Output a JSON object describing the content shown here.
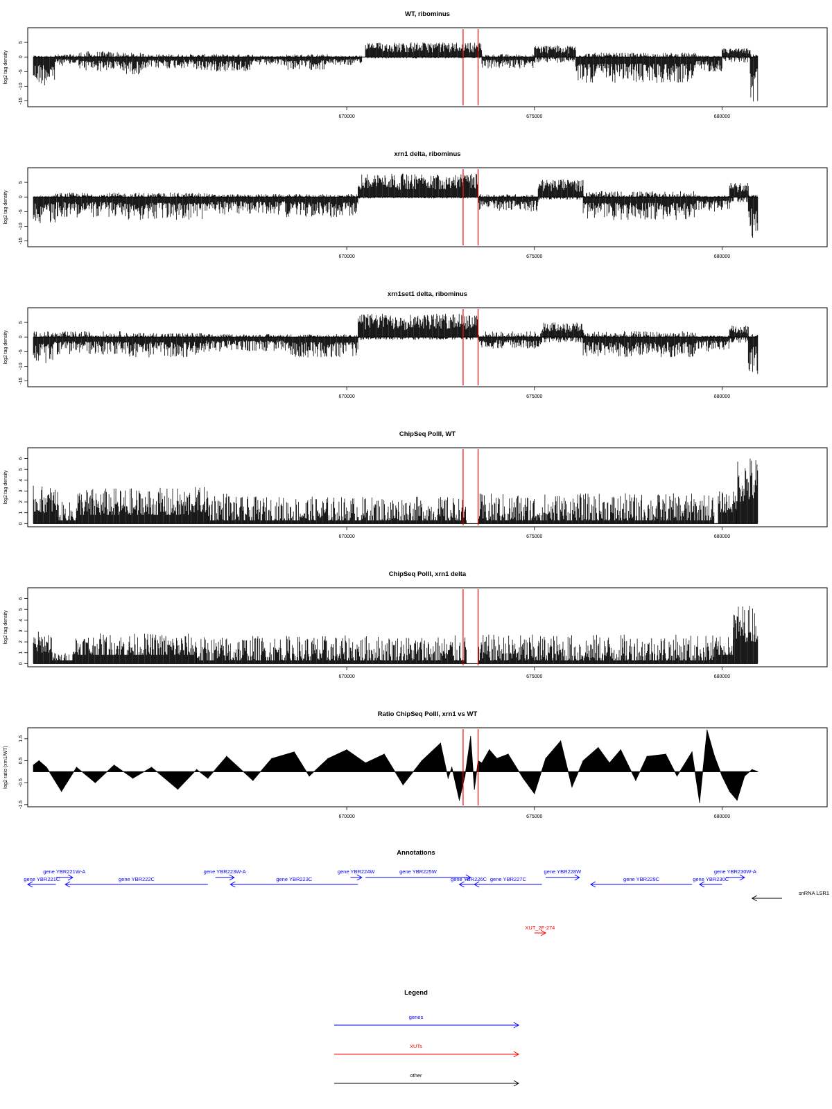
{
  "chart_data": [
    {
      "type": "bar",
      "title": "WT, ribominus",
      "ylabel": "log2 tag density",
      "xlim": [
        661500,
        682800
      ],
      "ylim": [
        -17,
        10
      ],
      "x_ticks": [
        670000,
        675000,
        680000
      ],
      "x_tick_labels": [
        "670000",
        "675000",
        "680000"
      ],
      "y_ticks": [
        -15,
        -10,
        -5,
        0,
        5
      ],
      "y_tick_labels": [
        "-15",
        "-10",
        "-5",
        "0",
        "5"
      ],
      "markers": [
        673100,
        673500
      ],
      "series": [
        {
          "segments": [
            {
              "from": 661650,
              "to": 662230,
              "min": -10,
              "max": 0.5
            },
            {
              "from": 662230,
              "to": 662870,
              "min": -3,
              "max": 1
            },
            {
              "from": 662870,
              "to": 664000,
              "min": -5,
              "max": 2
            },
            {
              "from": 664000,
              "to": 664700,
              "min": -6,
              "max": 1.5
            },
            {
              "from": 664700,
              "to": 666000,
              "min": -4,
              "max": 1
            },
            {
              "from": 666000,
              "to": 667500,
              "min": -5,
              "max": 1
            },
            {
              "from": 667500,
              "to": 668400,
              "min": -3,
              "max": 0.5
            },
            {
              "from": 668400,
              "to": 669500,
              "min": -4.5,
              "max": 1
            },
            {
              "from": 669500,
              "to": 670400,
              "min": -3,
              "max": 0.5
            },
            {
              "from": 670500,
              "to": 673600,
              "min": -0.5,
              "max": 5
            },
            {
              "from": 673600,
              "to": 675000,
              "min": -4,
              "max": 1
            },
            {
              "from": 675000,
              "to": 676100,
              "min": -2,
              "max": 4
            },
            {
              "from": 676100,
              "to": 679300,
              "min": -9,
              "max": 1.5
            },
            {
              "from": 679300,
              "to": 680000,
              "min": -5,
              "max": 0.5
            },
            {
              "from": 680000,
              "to": 680750,
              "min": -2,
              "max": 3
            },
            {
              "from": 680750,
              "to": 680950,
              "min": -16,
              "max": 1
            }
          ]
        }
      ]
    },
    {
      "type": "bar",
      "title": "xrn1 delta, ribominus",
      "ylabel": "log2 tag density",
      "xlim": [
        661500,
        682800
      ],
      "ylim": [
        -17,
        10
      ],
      "x_ticks": [
        670000,
        675000,
        680000
      ],
      "x_tick_labels": [
        "670000",
        "675000",
        "680000"
      ],
      "y_ticks": [
        -15,
        -10,
        -5,
        0,
        5
      ],
      "y_tick_labels": [
        "-15",
        "-10",
        "-5",
        "0",
        "5"
      ],
      "markers": [
        673100,
        673500
      ],
      "series": [
        {
          "segments": [
            {
              "from": 661650,
              "to": 662250,
              "min": -9,
              "max": 0.5
            },
            {
              "from": 662250,
              "to": 664000,
              "min": -7,
              "max": 1.5
            },
            {
              "from": 664000,
              "to": 666300,
              "min": -8,
              "max": 1.5
            },
            {
              "from": 666300,
              "to": 668400,
              "min": -6,
              "max": 1
            },
            {
              "from": 668400,
              "to": 670300,
              "min": -7,
              "max": 1
            },
            {
              "from": 670300,
              "to": 673500,
              "min": -0.5,
              "max": 8
            },
            {
              "from": 673500,
              "to": 675100,
              "min": -5,
              "max": 1
            },
            {
              "from": 675100,
              "to": 676300,
              "min": -1,
              "max": 6
            },
            {
              "from": 676300,
              "to": 679300,
              "min": -8,
              "max": 2
            },
            {
              "from": 679300,
              "to": 680200,
              "min": -5,
              "max": 0.5
            },
            {
              "from": 680200,
              "to": 680700,
              "min": -2,
              "max": 5
            },
            {
              "from": 680700,
              "to": 680950,
              "min": -15,
              "max": 1
            }
          ]
        }
      ]
    },
    {
      "type": "bar",
      "title": "xrn1set1 delta, ribominus",
      "ylabel": "log2 tag density",
      "xlim": [
        661500,
        682800
      ],
      "ylim": [
        -17,
        10
      ],
      "x_ticks": [
        670000,
        675000,
        680000
      ],
      "x_tick_labels": [
        "670000",
        "675000",
        "680000"
      ],
      "y_ticks": [
        -15,
        -10,
        -5,
        0,
        5
      ],
      "y_tick_labels": [
        "-15",
        "-10",
        "-5",
        "0",
        "5"
      ],
      "markers": [
        673100,
        673500
      ],
      "series": [
        {
          "segments": [
            {
              "from": 661650,
              "to": 662200,
              "min": -9,
              "max": 2
            },
            {
              "from": 662200,
              "to": 664000,
              "min": -6,
              "max": 2
            },
            {
              "from": 664000,
              "to": 666200,
              "min": -7,
              "max": 1.5
            },
            {
              "from": 666200,
              "to": 668400,
              "min": -5,
              "max": 1
            },
            {
              "from": 668400,
              "to": 670300,
              "min": -7,
              "max": 1
            },
            {
              "from": 670300,
              "to": 673500,
              "min": -1,
              "max": 8
            },
            {
              "from": 673500,
              "to": 675200,
              "min": -4,
              "max": 2
            },
            {
              "from": 675200,
              "to": 676300,
              "min": -2,
              "max": 5
            },
            {
              "from": 676300,
              "to": 679300,
              "min": -7,
              "max": 2
            },
            {
              "from": 679300,
              "to": 680200,
              "min": -5,
              "max": 0.5
            },
            {
              "from": 680200,
              "to": 680700,
              "min": -2,
              "max": 4
            },
            {
              "from": 680700,
              "to": 680950,
              "min": -13,
              "max": 1
            }
          ]
        }
      ]
    },
    {
      "type": "bar",
      "title": "ChipSeq PolII, WT",
      "ylabel": "log2 tag density",
      "xlim": [
        661500,
        682800
      ],
      "ylim": [
        -0.3,
        7
      ],
      "x_ticks": [
        670000,
        675000,
        680000
      ],
      "x_tick_labels": [
        "670000",
        "675000",
        "680000"
      ],
      "y_ticks": [
        0,
        1,
        2,
        3,
        4,
        5,
        6
      ],
      "y_tick_labels": [
        "0",
        "1",
        "2",
        "3",
        "4",
        "5",
        "6"
      ],
      "markers": [
        673100,
        673500
      ],
      "series": [
        {
          "segments": [
            {
              "from": 661650,
              "to": 662300,
              "min": 1,
              "max": 3.5
            },
            {
              "from": 662300,
              "to": 662800,
              "min": 0,
              "max": 2
            },
            {
              "from": 662800,
              "to": 665800,
              "min": 0.5,
              "max": 3.3
            },
            {
              "from": 665800,
              "to": 666300,
              "min": 1,
              "max": 3.4
            },
            {
              "from": 666300,
              "to": 666900,
              "min": 0,
              "max": 3
            },
            {
              "from": 666900,
              "to": 673200,
              "min": 0,
              "max": 2.5
            },
            {
              "from": 673500,
              "to": 679800,
              "min": 0,
              "max": 2.8
            },
            {
              "from": 679900,
              "to": 680400,
              "min": 1,
              "max": 3
            },
            {
              "from": 680400,
              "to": 680950,
              "min": 2,
              "max": 6.3
            }
          ]
        }
      ]
    },
    {
      "type": "bar",
      "title": "ChipSeq PolII, xrn1 delta",
      "ylabel": "log2 tag density",
      "xlim": [
        661500,
        682800
      ],
      "ylim": [
        -0.3,
        7
      ],
      "x_ticks": [
        670000,
        675000,
        680000
      ],
      "x_tick_labels": [
        "670000",
        "675000",
        "680000"
      ],
      "y_ticks": [
        0,
        1,
        2,
        3,
        4,
        5,
        6
      ],
      "y_tick_labels": [
        "0",
        "1",
        "2",
        "3",
        "4",
        "5",
        "6"
      ],
      "markers": [
        673100,
        673500
      ],
      "series": [
        {
          "segments": [
            {
              "from": 661650,
              "to": 662150,
              "min": 1,
              "max": 3
            },
            {
              "from": 662150,
              "to": 662700,
              "min": 0,
              "max": 1
            },
            {
              "from": 662700,
              "to": 666000,
              "min": 0.5,
              "max": 2.8
            },
            {
              "from": 666000,
              "to": 666800,
              "min": 0,
              "max": 2.5
            },
            {
              "from": 666800,
              "to": 673200,
              "min": 0,
              "max": 2.6
            },
            {
              "from": 673500,
              "to": 679800,
              "min": 0,
              "max": 2.7
            },
            {
              "from": 679800,
              "to": 680300,
              "min": 0.5,
              "max": 2.5
            },
            {
              "from": 680300,
              "to": 680950,
              "min": 2,
              "max": 5.5
            }
          ]
        }
      ]
    },
    {
      "type": "area",
      "title": "Ratio ChipSeq PolII, xrn1 vs WT",
      "ylabel": "log2 ratio (xrn1/WT)",
      "xlim": [
        661500,
        682800
      ],
      "ylim": [
        -1.6,
        2
      ],
      "x_ticks": [
        670000,
        675000,
        680000
      ],
      "x_tick_labels": [
        "670000",
        "675000",
        "680000"
      ],
      "y_ticks": [
        -1.5,
        -0.5,
        0.5,
        1.5
      ],
      "y_tick_labels": [
        "-1.5",
        "-0.5",
        "0.5",
        "1.5"
      ],
      "markers": [
        673100,
        673500
      ],
      "series": [
        {
          "x": [
            661650,
            661800,
            662000,
            662400,
            662800,
            663300,
            663800,
            664300,
            664800,
            665500,
            666000,
            666300,
            666800,
            667500,
            668000,
            668600,
            669000,
            669500,
            670000,
            670500,
            671000,
            671500,
            672000,
            672500,
            672700,
            672800,
            673000,
            673150,
            673300,
            673400,
            673500,
            673600,
            673800,
            674000,
            674300,
            674700,
            675000,
            675300,
            675700,
            676000,
            676300,
            676700,
            677000,
            677300,
            677700,
            678000,
            678500,
            678800,
            679200,
            679400,
            679600,
            679800,
            680000,
            680200,
            680400,
            680600,
            680800,
            680950
          ],
          "y": [
            0.3,
            0.5,
            0.2,
            -0.9,
            0.2,
            -0.5,
            0.3,
            -0.3,
            0.2,
            -0.8,
            0.1,
            -0.3,
            0.7,
            -0.4,
            0.6,
            0.9,
            -0.2,
            0.6,
            1.0,
            0.4,
            0.8,
            -0.6,
            0.5,
            1.3,
            -0.3,
            0.2,
            -1.3,
            -0.2,
            1.6,
            -0.8,
            0.5,
            0.4,
            1.0,
            0.6,
            0.8,
            -0.3,
            -1.0,
            0.6,
            1.4,
            -0.7,
            0.5,
            1.1,
            0.4,
            1.0,
            -0.4,
            0.7,
            0.8,
            -0.2,
            0.9,
            -1.4,
            1.9,
            0.7,
            -0.2,
            -0.9,
            -1.3,
            -0.2,
            0.1,
            0.0
          ]
        }
      ]
    }
  ],
  "annotations": {
    "title": "Annotations",
    "items": [
      {
        "label": "gene YBR221C",
        "kind": "genes",
        "dir": "left",
        "start": 661280,
        "end": 662250,
        "row": 1
      },
      {
        "label": "gene YBR221W-A",
        "kind": "genes",
        "dir": "right",
        "start": 662250,
        "end": 662700,
        "row": 0
      },
      {
        "label": "gene YBR222C",
        "kind": "genes",
        "dir": "left",
        "start": 662500,
        "end": 666300,
        "row": 1
      },
      {
        "label": "gene YBR223W-A",
        "kind": "genes",
        "dir": "right",
        "start": 666500,
        "end": 667000,
        "row": 0
      },
      {
        "label": "gene YBR223C",
        "kind": "genes",
        "dir": "left",
        "start": 666900,
        "end": 670300,
        "row": 1
      },
      {
        "label": "gene YBR224W",
        "kind": "genes",
        "dir": "right",
        "start": 670100,
        "end": 670400,
        "row": 0
      },
      {
        "label": "gene YBR225W",
        "kind": "genes",
        "dir": "right",
        "start": 670500,
        "end": 673300,
        "row": 0
      },
      {
        "label": "gene YBR226C",
        "kind": "genes",
        "dir": "left",
        "start": 673000,
        "end": 673500,
        "row": 1
      },
      {
        "label": "gene YBR227C",
        "kind": "genes",
        "dir": "left",
        "start": 673400,
        "end": 675200,
        "row": 1
      },
      {
        "label": "gene YBR228W",
        "kind": "genes",
        "dir": "right",
        "start": 675300,
        "end": 676200,
        "row": 0
      },
      {
        "label": "gene YBR229C",
        "kind": "genes",
        "dir": "left",
        "start": 676500,
        "end": 679200,
        "row": 1
      },
      {
        "label": "gene YBR230C",
        "kind": "genes",
        "dir": "left",
        "start": 679400,
        "end": 680000,
        "row": 1
      },
      {
        "label": "gene YBR230W-A",
        "kind": "genes",
        "dir": "right",
        "start": 680100,
        "end": 680600,
        "row": 0
      },
      {
        "label": "snRNA LSR1",
        "kind": "other",
        "dir": "left",
        "start": 680800,
        "end": 681600,
        "row": 2
      },
      {
        "label": "XUT_2F-274",
        "kind": "xuts",
        "dir": "right",
        "start": 675000,
        "end": 675300,
        "row": 3
      }
    ]
  },
  "legend": {
    "title": "Legend",
    "entries": [
      {
        "label": "genes",
        "kind": "genes"
      },
      {
        "label": "XUTs",
        "kind": "xuts"
      },
      {
        "label": "other",
        "kind": "other"
      }
    ]
  },
  "colors": {
    "genes": "#0000ff",
    "xuts": "#ff0000",
    "other": "#000000",
    "marker": "#ff0000",
    "data": "#000000"
  }
}
